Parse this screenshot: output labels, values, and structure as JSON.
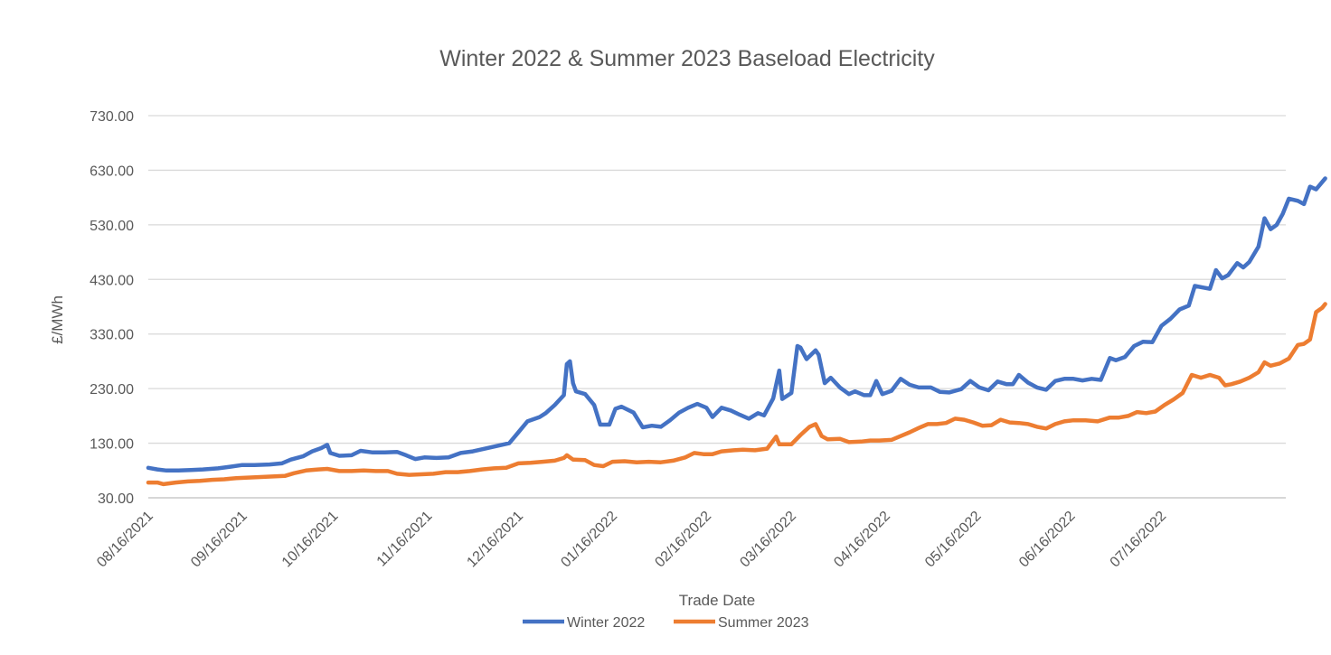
{
  "chart_data": {
    "type": "line",
    "title": "Winter 2022 & Summer 2023 Baseload Electricity",
    "xlabel": "Trade Date",
    "ylabel": "£/MWh",
    "ylim": [
      30,
      730
    ],
    "yticks": [
      30,
      130,
      230,
      330,
      430,
      530,
      630,
      730
    ],
    "ytick_labels": [
      "30.00",
      "130.00",
      "230.00",
      "330.00",
      "430.00",
      "530.00",
      "630.00",
      "730.00"
    ],
    "xlim": [
      "2021-08-16",
      "2022-08-26"
    ],
    "xtick_dates": [
      "2021-08-16",
      "2021-09-16",
      "2021-10-16",
      "2021-11-16",
      "2021-12-16",
      "2022-01-16",
      "2022-02-16",
      "2022-03-16",
      "2022-04-16",
      "2022-05-16",
      "2022-06-16",
      "2022-07-16"
    ],
    "xtick_labels": [
      "08/16/2021",
      "09/16/2021",
      "10/16/2021",
      "11/16/2021",
      "12/16/2021",
      "01/16/2022",
      "02/16/2022",
      "03/16/2022",
      "04/16/2022",
      "05/16/2022",
      "06/16/2022",
      "07/16/2022"
    ],
    "grid": true,
    "legend_position": "bottom",
    "series": [
      {
        "name": "Winter 2022",
        "color": "#4472c4",
        "points": [
          [
            "2021-08-16",
            85
          ],
          [
            "2021-08-19",
            82
          ],
          [
            "2021-08-22",
            80
          ],
          [
            "2021-08-26",
            80
          ],
          [
            "2021-08-30",
            81
          ],
          [
            "2021-09-03",
            82
          ],
          [
            "2021-09-08",
            84
          ],
          [
            "2021-09-12",
            87
          ],
          [
            "2021-09-16",
            90
          ],
          [
            "2021-09-20",
            90
          ],
          [
            "2021-09-25",
            91
          ],
          [
            "2021-09-29",
            93
          ],
          [
            "2021-10-02",
            100
          ],
          [
            "2021-10-06",
            106
          ],
          [
            "2021-10-09",
            115
          ],
          [
            "2021-10-12",
            121
          ],
          [
            "2021-10-14",
            127
          ],
          [
            "2021-10-15",
            112
          ],
          [
            "2021-10-18",
            107
          ],
          [
            "2021-10-22",
            108
          ],
          [
            "2021-10-25",
            116
          ],
          [
            "2021-10-29",
            113
          ],
          [
            "2021-11-02",
            113
          ],
          [
            "2021-11-06",
            114
          ],
          [
            "2021-11-09",
            108
          ],
          [
            "2021-11-12",
            101
          ],
          [
            "2021-11-15",
            104
          ],
          [
            "2021-11-19",
            103
          ],
          [
            "2021-11-23",
            104
          ],
          [
            "2021-11-27",
            112
          ],
          [
            "2021-12-01",
            115
          ],
          [
            "2021-12-05",
            120
          ],
          [
            "2021-12-09",
            125
          ],
          [
            "2021-12-13",
            130
          ],
          [
            "2021-12-16",
            150
          ],
          [
            "2021-12-19",
            170
          ],
          [
            "2021-12-23",
            178
          ],
          [
            "2021-12-25",
            185
          ],
          [
            "2021-12-28",
            200
          ],
          [
            "2021-12-31",
            218
          ],
          [
            "2022-01-01",
            275
          ],
          [
            "2022-01-02",
            280
          ],
          [
            "2022-01-03",
            240
          ],
          [
            "2022-01-04",
            225
          ],
          [
            "2022-01-07",
            220
          ],
          [
            "2022-01-10",
            200
          ],
          [
            "2022-01-12",
            164
          ],
          [
            "2022-01-15",
            164
          ],
          [
            "2022-01-17",
            193
          ],
          [
            "2022-01-19",
            197
          ],
          [
            "2022-01-23",
            186
          ],
          [
            "2022-01-26",
            159
          ],
          [
            "2022-01-29",
            162
          ],
          [
            "2022-02-01",
            160
          ],
          [
            "2022-02-04",
            172
          ],
          [
            "2022-02-07",
            186
          ],
          [
            "2022-02-10",
            195
          ],
          [
            "2022-02-13",
            202
          ],
          [
            "2022-02-16",
            195
          ],
          [
            "2022-02-18",
            178
          ],
          [
            "2022-02-21",
            195
          ],
          [
            "2022-02-24",
            190
          ],
          [
            "2022-02-27",
            182
          ],
          [
            "2022-03-02",
            175
          ],
          [
            "2022-03-05",
            185
          ],
          [
            "2022-03-07",
            181
          ],
          [
            "2022-03-10",
            212
          ],
          [
            "2022-03-12",
            263
          ],
          [
            "2022-03-13",
            211
          ],
          [
            "2022-03-16",
            222
          ],
          [
            "2022-03-18",
            308
          ],
          [
            "2022-03-19",
            305
          ],
          [
            "2022-03-21",
            284
          ],
          [
            "2022-03-24",
            300
          ],
          [
            "2022-03-25",
            292
          ],
          [
            "2022-03-27",
            240
          ],
          [
            "2022-03-29",
            250
          ],
          [
            "2022-04-01",
            232
          ],
          [
            "2022-04-04",
            220
          ],
          [
            "2022-04-06",
            225
          ],
          [
            "2022-04-09",
            218
          ],
          [
            "2022-04-11",
            218
          ],
          [
            "2022-04-13",
            244
          ],
          [
            "2022-04-15",
            220
          ],
          [
            "2022-04-18",
            226
          ],
          [
            "2022-04-21",
            248
          ],
          [
            "2022-04-24",
            237
          ],
          [
            "2022-04-27",
            232
          ],
          [
            "2022-05-01",
            232
          ],
          [
            "2022-05-04",
            224
          ],
          [
            "2022-05-07",
            223
          ],
          [
            "2022-05-11",
            229
          ],
          [
            "2022-05-14",
            244
          ],
          [
            "2022-05-17",
            232
          ],
          [
            "2022-05-20",
            227
          ],
          [
            "2022-05-23",
            243
          ],
          [
            "2022-05-26",
            238
          ],
          [
            "2022-05-28",
            238
          ],
          [
            "2022-05-30",
            255
          ],
          [
            "2022-06-02",
            241
          ],
          [
            "2022-06-05",
            232
          ],
          [
            "2022-06-08",
            228
          ],
          [
            "2022-06-11",
            244
          ],
          [
            "2022-06-14",
            248
          ],
          [
            "2022-06-17",
            248
          ],
          [
            "2022-06-20",
            245
          ],
          [
            "2022-06-23",
            248
          ],
          [
            "2022-06-26",
            246
          ],
          [
            "2022-06-29",
            286
          ],
          [
            "2022-07-01",
            282
          ],
          [
            "2022-07-04",
            288
          ],
          [
            "2022-07-07",
            308
          ],
          [
            "2022-07-10",
            316
          ],
          [
            "2022-07-13",
            315
          ],
          [
            "2022-07-16",
            345
          ],
          [
            "2022-07-19",
            358
          ],
          [
            "2022-07-22",
            375
          ],
          [
            "2022-07-25",
            382
          ],
          [
            "2022-07-27",
            418
          ],
          [
            "2022-07-30",
            415
          ],
          [
            "2022-08-01",
            413
          ],
          [
            "2022-08-03",
            447
          ],
          [
            "2022-08-05",
            432
          ],
          [
            "2022-08-07",
            438
          ],
          [
            "2022-08-10",
            460
          ],
          [
            "2022-08-12",
            452
          ],
          [
            "2022-08-14",
            462
          ],
          [
            "2022-08-17",
            490
          ],
          [
            "2022-08-19",
            542
          ],
          [
            "2022-08-21",
            522
          ],
          [
            "2022-08-23",
            530
          ],
          [
            "2022-08-25",
            550
          ],
          [
            "2022-08-27",
            578
          ],
          [
            "2022-08-30",
            574
          ],
          [
            "2022-09-01",
            568
          ],
          [
            "2022-09-03",
            600
          ],
          [
            "2022-09-05",
            595
          ],
          [
            "2022-09-08",
            615
          ]
        ]
      },
      {
        "name": "Summer 2023",
        "color": "#ed7d31",
        "points": [
          [
            "2021-08-16",
            58
          ],
          [
            "2021-08-19",
            58
          ],
          [
            "2021-08-21",
            55
          ],
          [
            "2021-08-25",
            58
          ],
          [
            "2021-08-29",
            60
          ],
          [
            "2021-09-02",
            61
          ],
          [
            "2021-09-06",
            63
          ],
          [
            "2021-09-10",
            64
          ],
          [
            "2021-09-14",
            66
          ],
          [
            "2021-09-18",
            67
          ],
          [
            "2021-09-22",
            68
          ],
          [
            "2021-09-26",
            69
          ],
          [
            "2021-09-30",
            70
          ],
          [
            "2021-10-03",
            75
          ],
          [
            "2021-10-07",
            80
          ],
          [
            "2021-10-11",
            82
          ],
          [
            "2021-10-14",
            83
          ],
          [
            "2021-10-18",
            79
          ],
          [
            "2021-10-22",
            79
          ],
          [
            "2021-10-26",
            80
          ],
          [
            "2021-10-30",
            79
          ],
          [
            "2021-11-03",
            79
          ],
          [
            "2021-11-06",
            74
          ],
          [
            "2021-11-10",
            72
          ],
          [
            "2021-11-14",
            73
          ],
          [
            "2021-11-18",
            74
          ],
          [
            "2021-11-22",
            77
          ],
          [
            "2021-11-26",
            77
          ],
          [
            "2021-11-30",
            79
          ],
          [
            "2021-12-04",
            82
          ],
          [
            "2021-12-08",
            84
          ],
          [
            "2021-12-12",
            85
          ],
          [
            "2021-12-16",
            93
          ],
          [
            "2021-12-20",
            94
          ],
          [
            "2021-12-24",
            96
          ],
          [
            "2021-12-28",
            98
          ],
          [
            "2021-12-31",
            103
          ],
          [
            "2022-01-01",
            108
          ],
          [
            "2022-01-03",
            100
          ],
          [
            "2022-01-07",
            99
          ],
          [
            "2022-01-10",
            90
          ],
          [
            "2022-01-13",
            88
          ],
          [
            "2022-01-16",
            96
          ],
          [
            "2022-01-20",
            97
          ],
          [
            "2022-01-24",
            95
          ],
          [
            "2022-01-28",
            96
          ],
          [
            "2022-02-01",
            95
          ],
          [
            "2022-02-05",
            98
          ],
          [
            "2022-02-09",
            104
          ],
          [
            "2022-02-12",
            112
          ],
          [
            "2022-02-15",
            110
          ],
          [
            "2022-02-18",
            110
          ],
          [
            "2022-02-21",
            115
          ],
          [
            "2022-02-25",
            117
          ],
          [
            "2022-02-28",
            118
          ],
          [
            "2022-03-04",
            117
          ],
          [
            "2022-03-08",
            120
          ],
          [
            "2022-03-11",
            142
          ],
          [
            "2022-03-12",
            128
          ],
          [
            "2022-03-16",
            128
          ],
          [
            "2022-03-19",
            145
          ],
          [
            "2022-03-22",
            160
          ],
          [
            "2022-03-24",
            165
          ],
          [
            "2022-03-26",
            143
          ],
          [
            "2022-03-28",
            137
          ],
          [
            "2022-04-01",
            138
          ],
          [
            "2022-04-04",
            132
          ],
          [
            "2022-04-08",
            133
          ],
          [
            "2022-04-11",
            135
          ],
          [
            "2022-04-14",
            135
          ],
          [
            "2022-04-18",
            136
          ],
          [
            "2022-04-21",
            143
          ],
          [
            "2022-04-24",
            150
          ],
          [
            "2022-04-27",
            158
          ],
          [
            "2022-04-30",
            165
          ],
          [
            "2022-05-03",
            165
          ],
          [
            "2022-05-06",
            167
          ],
          [
            "2022-05-09",
            175
          ],
          [
            "2022-05-12",
            173
          ],
          [
            "2022-05-15",
            168
          ],
          [
            "2022-05-18",
            162
          ],
          [
            "2022-05-21",
            163
          ],
          [
            "2022-05-24",
            173
          ],
          [
            "2022-05-27",
            168
          ],
          [
            "2022-05-30",
            167
          ],
          [
            "2022-06-02",
            165
          ],
          [
            "2022-06-05",
            160
          ],
          [
            "2022-06-08",
            157
          ],
          [
            "2022-06-11",
            165
          ],
          [
            "2022-06-14",
            170
          ],
          [
            "2022-06-17",
            172
          ],
          [
            "2022-06-21",
            172
          ],
          [
            "2022-06-25",
            170
          ],
          [
            "2022-06-29",
            177
          ],
          [
            "2022-07-02",
            177
          ],
          [
            "2022-07-05",
            180
          ],
          [
            "2022-07-08",
            187
          ],
          [
            "2022-07-11",
            185
          ],
          [
            "2022-07-14",
            188
          ],
          [
            "2022-07-17",
            200
          ],
          [
            "2022-07-20",
            210
          ],
          [
            "2022-07-23",
            222
          ],
          [
            "2022-07-26",
            255
          ],
          [
            "2022-07-29",
            250
          ],
          [
            "2022-08-01",
            255
          ],
          [
            "2022-08-04",
            250
          ],
          [
            "2022-08-06",
            236
          ],
          [
            "2022-08-08",
            238
          ],
          [
            "2022-08-11",
            243
          ],
          [
            "2022-08-14",
            250
          ],
          [
            "2022-08-17",
            260
          ],
          [
            "2022-08-19",
            278
          ],
          [
            "2022-08-21",
            272
          ],
          [
            "2022-08-24",
            276
          ],
          [
            "2022-08-27",
            285
          ],
          [
            "2022-08-30",
            310
          ],
          [
            "2022-09-01",
            312
          ],
          [
            "2022-09-03",
            320
          ],
          [
            "2022-09-05",
            370
          ],
          [
            "2022-09-07",
            378
          ],
          [
            "2022-09-08",
            385
          ]
        ]
      }
    ]
  }
}
